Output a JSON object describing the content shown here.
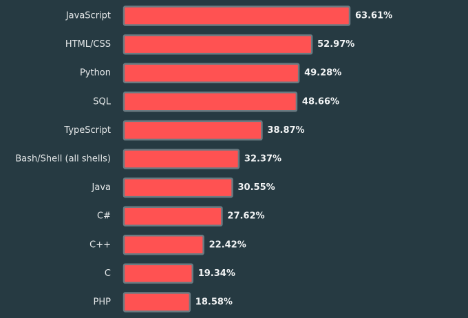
{
  "chart_data": {
    "type": "bar",
    "categories": [
      "JavaScript",
      "HTML/CSS",
      "Python",
      "SQL",
      "TypeScript",
      "Bash/Shell (all shells)",
      "Java",
      "C#",
      "C++",
      "C",
      "PHP"
    ],
    "values": [
      63.61,
      52.97,
      49.28,
      48.66,
      38.87,
      32.37,
      30.55,
      27.62,
      22.42,
      19.34,
      18.58
    ],
    "value_labels": [
      "63.61%",
      "52.97%",
      "49.28%",
      "48.66%",
      "38.87%",
      "32.37%",
      "30.55%",
      "27.62%",
      "22.42%",
      "19.34%",
      "18.58%"
    ],
    "color": "#ff5252"
  }
}
